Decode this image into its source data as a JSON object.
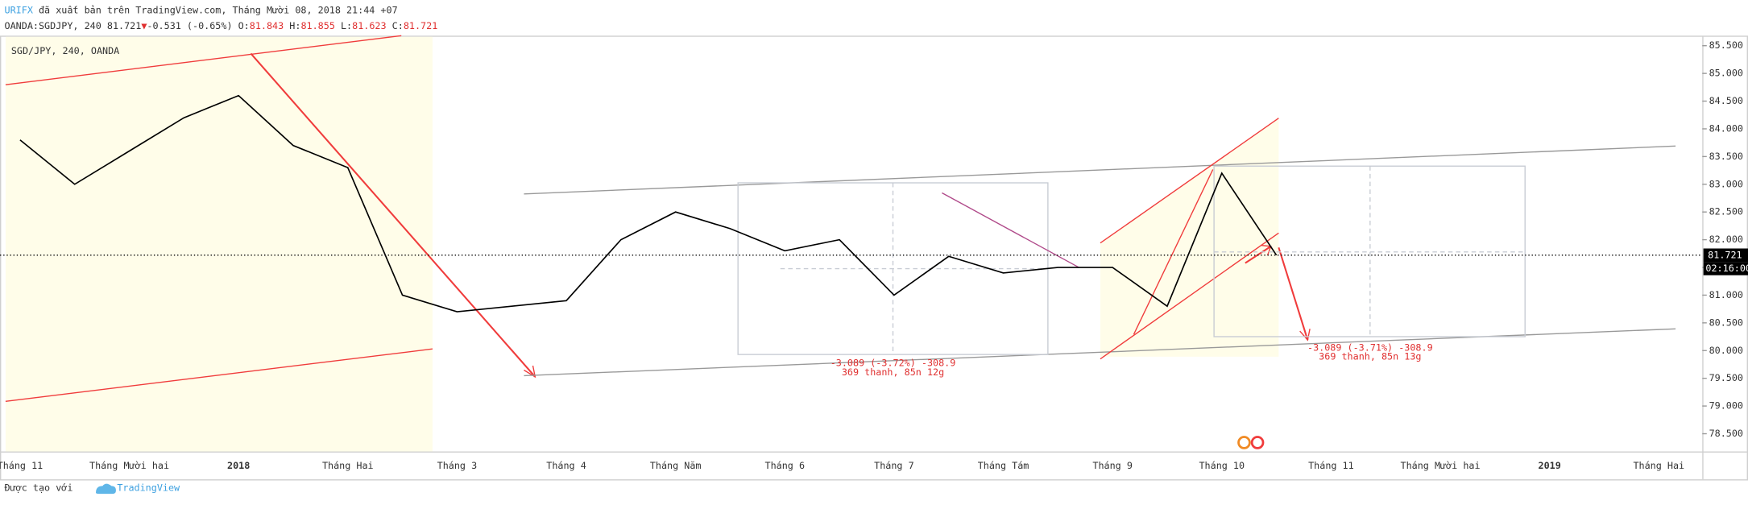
{
  "header": {
    "author": "URIFX",
    "published": "đã xuất bản trên TradingView.com, Tháng Mười 08, 2018 21:44 +07",
    "symbol": "OANDA:SGDJPY, 240",
    "last": "81.721",
    "arrow": "▼",
    "change": "-0.531 (-0.65%)",
    "open_label": "O:",
    "open": "81.843",
    "high_label": "H:",
    "high": "81.855",
    "low_label": "L:",
    "low": "81.623",
    "close_label": "C:",
    "close": "81.721"
  },
  "chart_data": {
    "type": "line",
    "title": "SGD/JPY, 240, OANDA",
    "categories": [
      "Tháng 11",
      null,
      "Tháng Mười hai",
      null,
      "2018",
      null,
      "Tháng Hai",
      null,
      "Tháng 3",
      null,
      "Tháng 4",
      null,
      "Tháng Năm",
      null,
      "Tháng 6",
      null,
      "Tháng 7",
      null,
      "Tháng Tám",
      null,
      "Tháng 9",
      null,
      "Tháng 10",
      null,
      "Tháng 11",
      null,
      "Tháng Mười hai",
      null,
      "2019",
      null,
      "Tháng Hai",
      null
    ],
    "series": [
      {
        "name": "SGD/JPY",
        "color": "#000000",
        "values": [
          83.8,
          83.0,
          83.6,
          84.2,
          84.6,
          83.7,
          83.3,
          81.0,
          80.7,
          80.8,
          80.9,
          82.0,
          82.5,
          82.2,
          81.8,
          82.0,
          81.0,
          81.7,
          81.4,
          81.5,
          81.5,
          80.8,
          83.2,
          81.721,
          null,
          null,
          null,
          null,
          null,
          null,
          null,
          null
        ]
      }
    ],
    "ylim": [
      78.18,
      85.66
    ],
    "yticks": [
      {
        "value": 78.5,
        "label": "78.500"
      },
      {
        "value": 79.0,
        "label": "79.000"
      },
      {
        "value": 79.5,
        "label": "79.500"
      },
      {
        "value": 80.0,
        "label": "80.000"
      },
      {
        "value": 80.5,
        "label": "80.500"
      },
      {
        "value": 81.0,
        "label": "81.000"
      },
      {
        "value": 81.5,
        "label": "81.500"
      },
      {
        "value": 82.0,
        "label": "82.000"
      },
      {
        "value": 82.5,
        "label": "82.500"
      },
      {
        "value": 83.0,
        "label": "83.000"
      },
      {
        "value": 83.5,
        "label": "83.500"
      },
      {
        "value": 84.0,
        "label": "84.000"
      },
      {
        "value": 84.5,
        "label": "84.500"
      },
      {
        "value": 85.0,
        "label": "85.000"
      },
      {
        "value": 85.5,
        "label": "85.500"
      }
    ],
    "price_line": {
      "value": 81.721,
      "label": "81.721"
    },
    "countdown": "02:16:00",
    "grid": false,
    "annotations": [
      {
        "line1": "-3.089 (-3.72%) -308.9",
        "line2": "369 thanh, 85n 12g"
      },
      {
        "line1": "-3.089 (-3.71%) -308.9",
        "line2": "369 thanh, 85n 13g"
      }
    ]
  },
  "footer": {
    "made_with": "Được tạo với",
    "brand": "TradingView"
  }
}
